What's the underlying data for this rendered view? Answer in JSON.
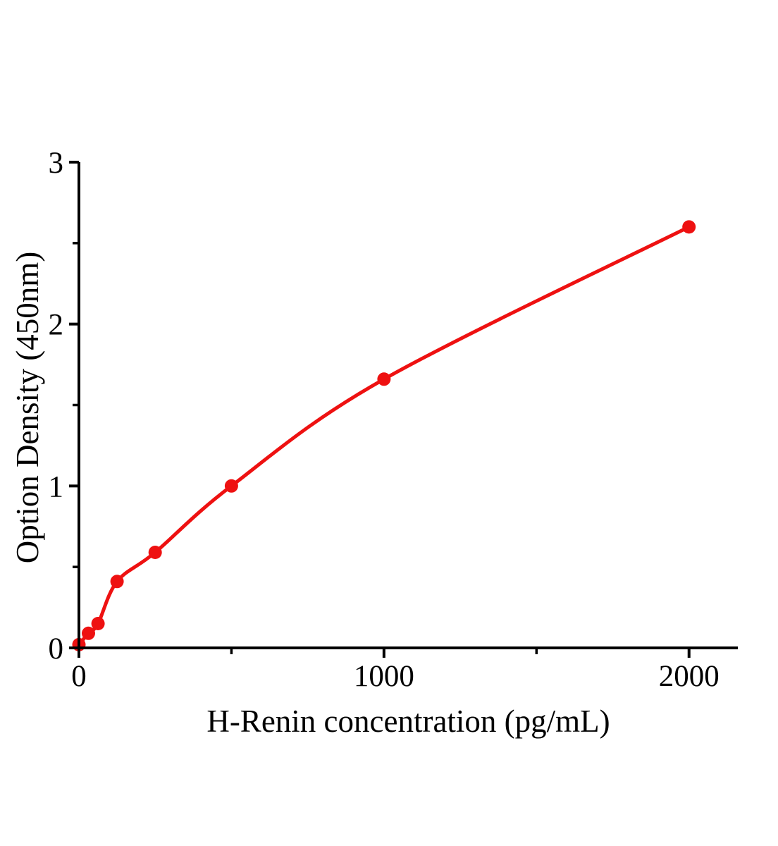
{
  "chart_data": {
    "type": "line",
    "title": "",
    "xlabel": "H-Renin concentration (pg/mL)",
    "ylabel": "Option Density (450nm)",
    "x": [
      0,
      31.25,
      62.5,
      125,
      250,
      500,
      1000,
      2000
    ],
    "y": [
      0.02,
      0.09,
      0.15,
      0.41,
      0.59,
      1.0,
      1.66,
      2.6
    ],
    "xlim": [
      0,
      2160
    ],
    "ylim": [
      0,
      3
    ],
    "x_major_ticks": [
      0,
      1000,
      2000
    ],
    "x_minor_ticks": [
      500,
      1500
    ],
    "y_major_ticks": [
      0,
      1,
      2,
      3
    ],
    "y_minor_ticks": [
      0.5,
      1.5,
      2.5
    ],
    "x_tick_labels": [
      "0",
      "1000",
      "2000"
    ],
    "y_tick_labels": [
      "0",
      "1",
      "2",
      "3"
    ],
    "grid": false,
    "legend": "none",
    "line_color": "#ee1111",
    "marker_color": "#ee1111",
    "axis_color": "#000000",
    "background_color": "#ffffff"
  }
}
